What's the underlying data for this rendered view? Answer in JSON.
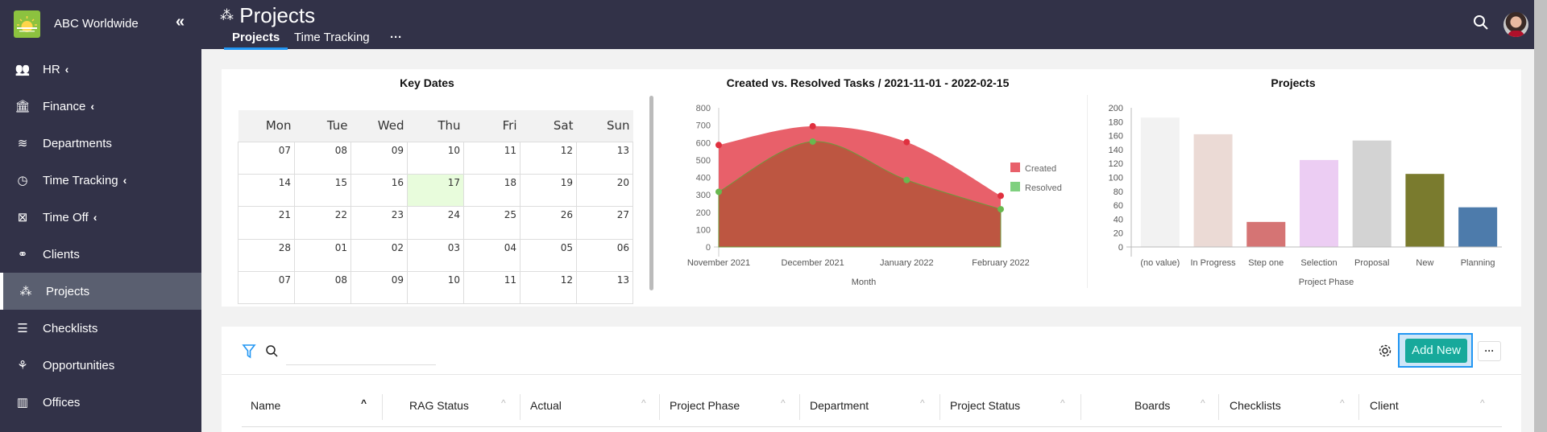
{
  "brand": {
    "name": "ABC Worldwide",
    "collapse_icon": "double-chevron-left-icon"
  },
  "sidebar": {
    "items": [
      {
        "label": "HR",
        "icon": "people-icon",
        "chevron": true
      },
      {
        "label": "Finance",
        "icon": "bank-icon",
        "chevron": true
      },
      {
        "label": "Departments",
        "icon": "layers-icon",
        "chevron": false
      },
      {
        "label": "Time Tracking",
        "icon": "clock-icon",
        "chevron": true
      },
      {
        "label": "Time Off",
        "icon": "calendar-x-icon",
        "chevron": true
      },
      {
        "label": "Clients",
        "icon": "handshake-icon",
        "chevron": false
      },
      {
        "label": "Projects",
        "icon": "cubes-icon",
        "chevron": false,
        "active": true
      },
      {
        "label": "Checklists",
        "icon": "checklist-icon",
        "chevron": false
      },
      {
        "label": "Opportunities",
        "icon": "plant-hand-icon",
        "chevron": false
      },
      {
        "label": "Offices",
        "icon": "building-icon",
        "chevron": false
      }
    ]
  },
  "header": {
    "title": "Projects",
    "tabs": [
      "Projects",
      "Time Tracking"
    ],
    "more": "···"
  },
  "key_dates": {
    "title": "Key Dates",
    "weekdays": [
      "Mon",
      "Tue",
      "Wed",
      "Thu",
      "Fri",
      "Sat",
      "Sun"
    ],
    "weeks": [
      [
        "07",
        "08",
        "09",
        "10",
        "11",
        "12",
        "13"
      ],
      [
        "14",
        "15",
        "16",
        "17",
        "18",
        "19",
        "20"
      ],
      [
        "21",
        "22",
        "23",
        "24",
        "25",
        "26",
        "27"
      ],
      [
        "28",
        "01",
        "02",
        "03",
        "04",
        "05",
        "06"
      ],
      [
        "07",
        "08",
        "09",
        "10",
        "11",
        "12",
        "13"
      ]
    ],
    "highlighted": "17"
  },
  "chart_data": [
    {
      "type": "area",
      "title": "Created vs. Resolved Tasks / 2021-11-01 - 2022-02-15",
      "xlabel": "Month",
      "ylabel": "",
      "categories": [
        "November 2021",
        "December 2021",
        "January 2022",
        "February 2022"
      ],
      "ylim": [
        0,
        800
      ],
      "yticks": [
        0,
        100,
        200,
        300,
        400,
        500,
        600,
        700,
        800
      ],
      "legend": "right",
      "series": [
        {
          "name": "Created",
          "values": [
            586,
            694,
            603,
            294
          ],
          "color": "#e8606a"
        },
        {
          "name": "Resolved",
          "values": [
            317,
            606,
            385,
            217
          ],
          "color": "#7fd07f"
        }
      ]
    },
    {
      "type": "bar",
      "title": "Projects",
      "xlabel": "Project Phase",
      "ylabel": "",
      "categories": [
        "(no value)",
        "In Progress",
        "Step one",
        "Selection",
        "Proposal",
        "New",
        "Planning"
      ],
      "values": [
        186,
        162,
        36,
        125,
        153,
        105,
        57
      ],
      "colors": [
        "#f2f2f2",
        "#ebdad5",
        "#d57474",
        "#eccdf3",
        "#d3d3d3",
        "#7a7b2e",
        "#4d7bab"
      ],
      "ylim": [
        0,
        200
      ],
      "yticks": [
        0,
        20,
        40,
        60,
        80,
        100,
        120,
        140,
        160,
        180,
        200
      ]
    }
  ],
  "toolbar": {
    "add_new": "Add New",
    "more": "···",
    "search_value": ""
  },
  "table": {
    "columns": [
      "Name",
      "RAG Status",
      "Actual",
      "Project Phase",
      "Department",
      "Project Status",
      "Boards",
      "Checklists",
      "Client"
    ]
  },
  "colors": {
    "accent": "#2196f3",
    "add_button": "#17a99b",
    "sidebar": "#323248"
  }
}
